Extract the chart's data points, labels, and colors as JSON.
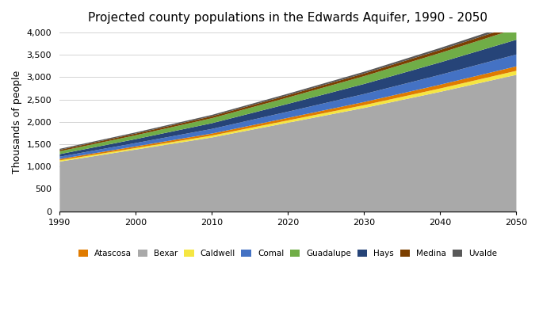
{
  "title": "Projected county populations in the Edwards Aquifer, 1990 - 2050",
  "ylabel": "Thousands of people",
  "ylim": [
    0,
    4000
  ],
  "yticks": [
    0,
    500,
    1000,
    1500,
    2000,
    2500,
    3000,
    3500,
    4000
  ],
  "xlim": [
    1990,
    2050
  ],
  "xticks": [
    1990,
    2000,
    2010,
    2020,
    2030,
    2040,
    2050
  ],
  "years": [
    1990,
    2000,
    2010,
    2020,
    2030,
    2040,
    2050
  ],
  "data": {
    "Bexar": [
      1120,
      1390,
      1660,
      1990,
      2320,
      2680,
      3060
    ],
    "Caldwell": [
      28,
      34,
      42,
      52,
      63,
      76,
      90
    ],
    "Atascosa": [
      30,
      37,
      46,
      57,
      70,
      85,
      100
    ],
    "Comal": [
      52,
      75,
      103,
      138,
      178,
      220,
      265
    ],
    "Hays": [
      57,
      88,
      128,
      175,
      225,
      278,
      330
    ],
    "Guadalupe": [
      64,
      86,
      112,
      142,
      175,
      210,
      248
    ],
    "Medina": [
      32,
      38,
      44,
      51,
      59,
      68,
      78
    ],
    "Uvalde": [
      23,
      26,
      30,
      34,
      39,
      45,
      51
    ]
  },
  "stack_order": [
    "Bexar",
    "Caldwell",
    "Atascosa",
    "Comal",
    "Hays",
    "Guadalupe",
    "Medina",
    "Uvalde"
  ],
  "stack_colors": [
    "#a9a9a9",
    "#f5e642",
    "#e07b00",
    "#4472c4",
    "#264478",
    "#70ad47",
    "#7B3F00",
    "#595959"
  ],
  "legend_order": [
    "Atascosa",
    "Bexar",
    "Caldwell",
    "Comal",
    "Guadalupe",
    "Hays",
    "Medina",
    "Uvalde"
  ],
  "legend_colors": {
    "Atascosa": "#e07b00",
    "Bexar": "#a9a9a9",
    "Caldwell": "#f5e642",
    "Comal": "#4472c4",
    "Guadalupe": "#70ad47",
    "Hays": "#264478",
    "Medina": "#7B3F00",
    "Uvalde": "#595959"
  },
  "background_color": "#ffffff",
  "grid_color": "#d3d3d3",
  "title_fontsize": 11,
  "label_fontsize": 9,
  "tick_fontsize": 8,
  "legend_fontsize": 7.5
}
